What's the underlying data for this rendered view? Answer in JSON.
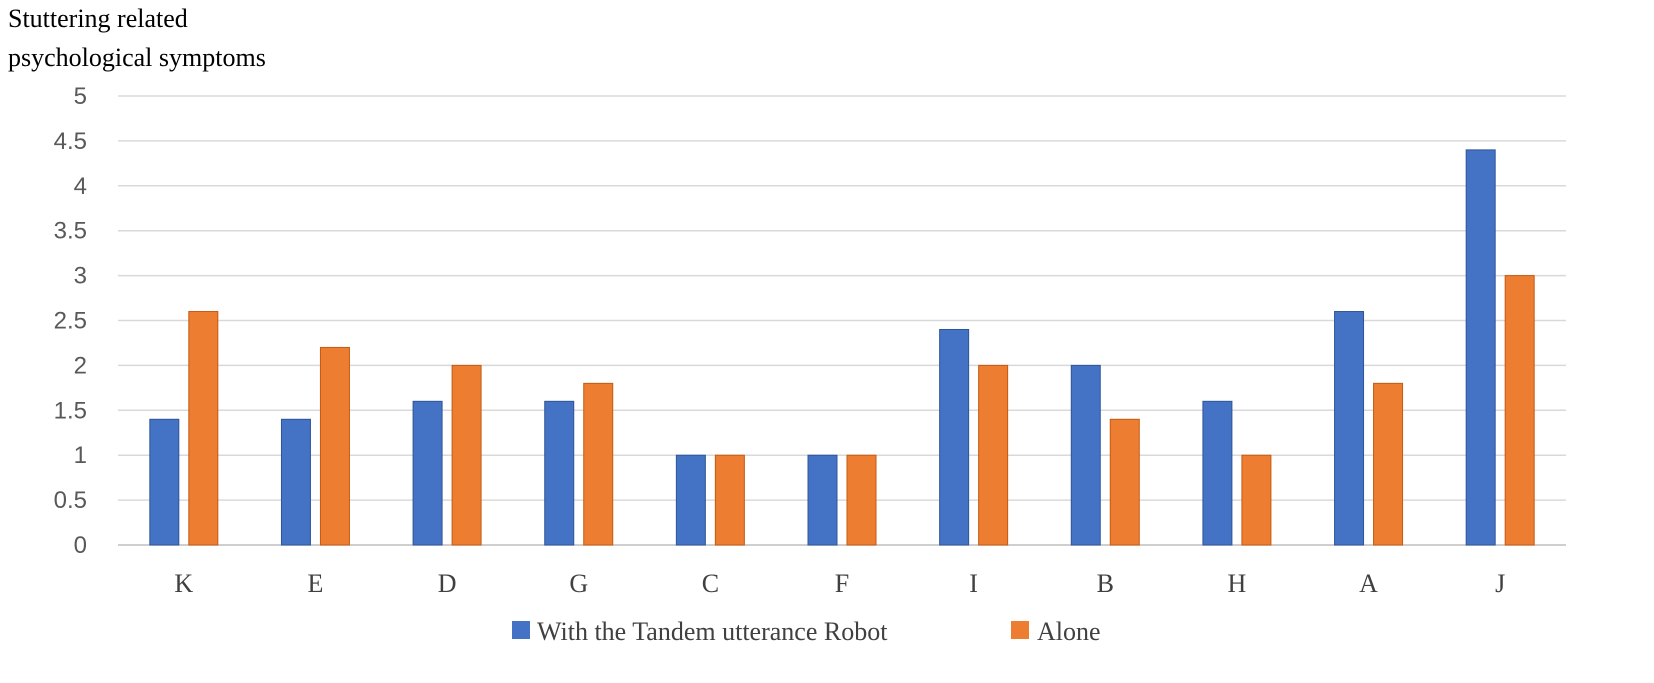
{
  "chart_data": {
    "type": "bar",
    "ylabel_lines": [
      "Stuttering related",
      "psychological symptoms"
    ],
    "xlabel": "",
    "categories": [
      "K",
      "E",
      "D",
      "G",
      "C",
      "F",
      "I",
      "B",
      "H",
      "A",
      "J"
    ],
    "series": [
      {
        "name": "With the Tandem utterance Robot",
        "color": "#4472C4",
        "values": [
          1.4,
          1.4,
          1.6,
          1.6,
          1.0,
          1.0,
          2.4,
          2.0,
          1.6,
          2.6,
          4.4
        ]
      },
      {
        "name": "Alone",
        "color": "#ED7D31",
        "values": [
          2.6,
          2.2,
          2.0,
          1.8,
          1.0,
          1.0,
          2.0,
          1.4,
          1.0,
          1.8,
          3.0
        ]
      }
    ],
    "ylim": [
      0,
      5
    ],
    "yticks": [
      "0",
      "0.5",
      "1",
      "1.5",
      "2",
      "2.5",
      "3",
      "3.5",
      "4",
      "4.5",
      "5"
    ],
    "grid": true,
    "legend_position": "bottom"
  }
}
